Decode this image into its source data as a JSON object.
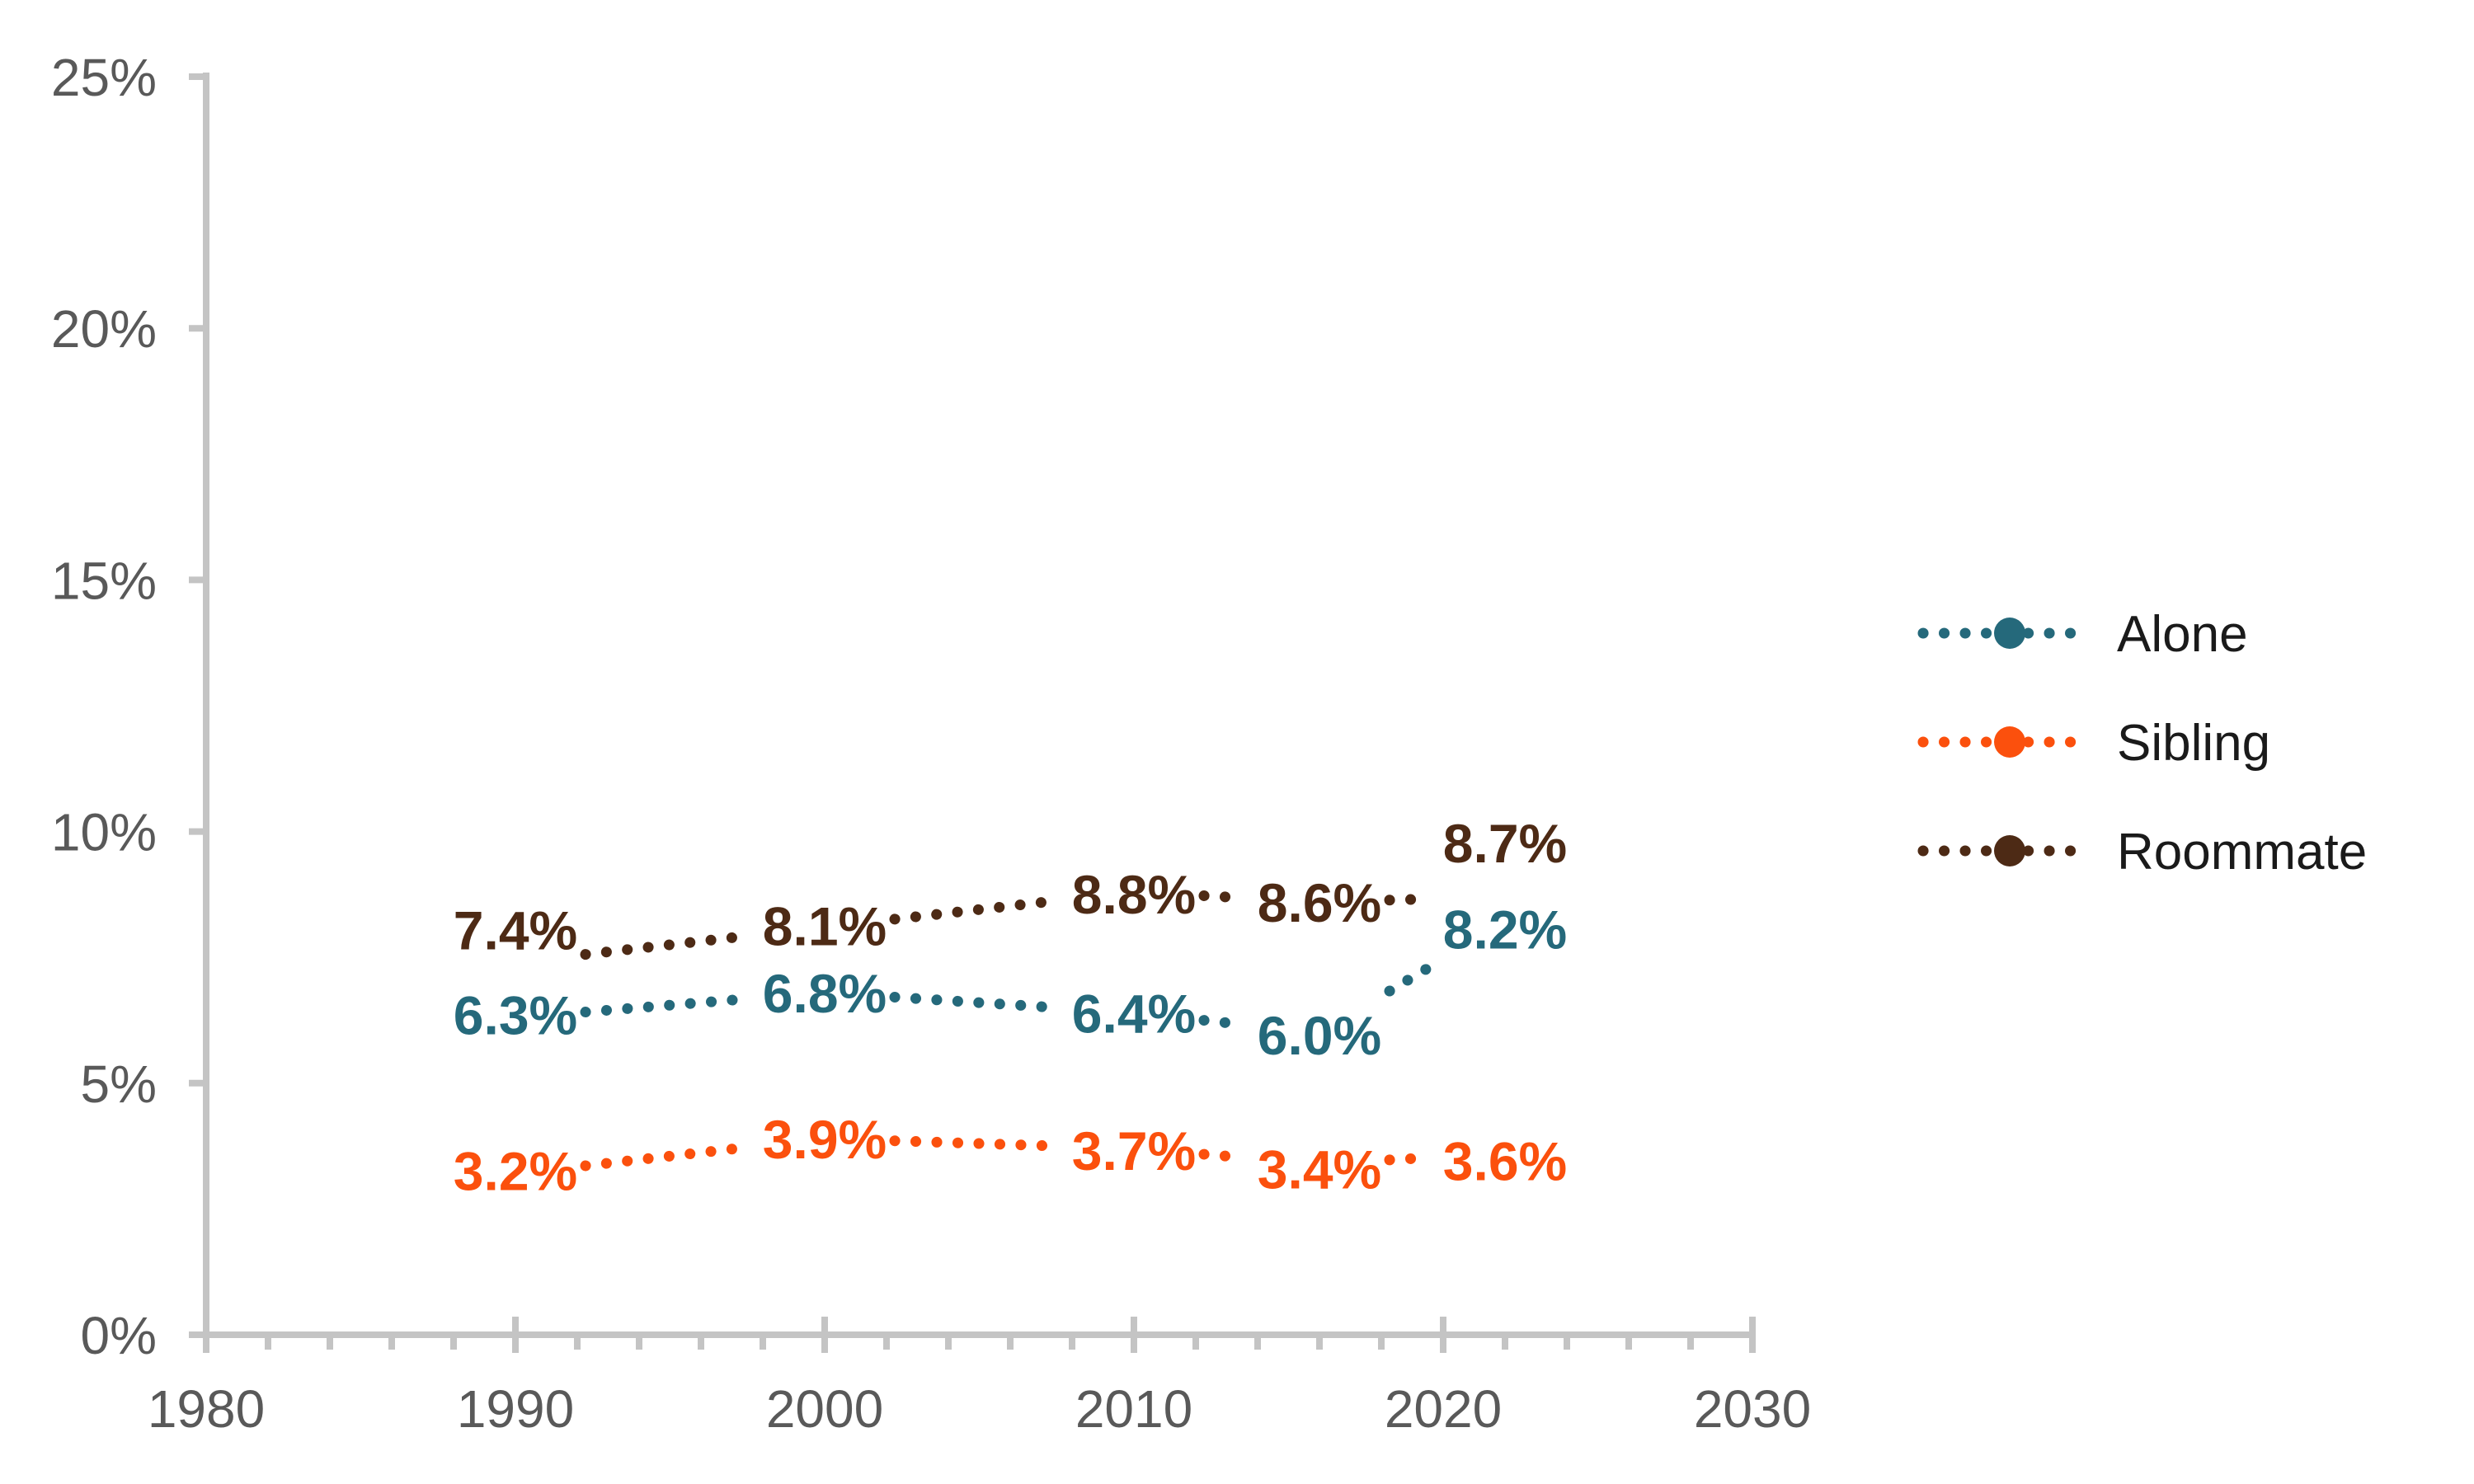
{
  "page": {
    "background": "#ffffff"
  },
  "chart_data": {
    "type": "line",
    "line_style": "dotted",
    "x": [
      1990,
      2000,
      2010,
      2016,
      2022
    ],
    "series": [
      {
        "name": "Alone",
        "color": "#25697b",
        "values": [
          6.3,
          6.8,
          6.4,
          6.0,
          8.2
        ],
        "point_labels": [
          "6.3%",
          "6.8%",
          "6.4%",
          "6.0%",
          "8.2%"
        ],
        "label_dy": [
          -4,
          0,
          0,
          2,
          8
        ]
      },
      {
        "name": "Sibling",
        "color": "#fb500d",
        "values": [
          3.2,
          3.9,
          3.7,
          3.4,
          3.6
        ],
        "point_labels": [
          "3.2%",
          "3.9%",
          "3.7%",
          "3.4%",
          "3.6%"
        ],
        "label_dy": [
          -4,
          0,
          2,
          6,
          8
        ]
      },
      {
        "name": "Roommate",
        "color": "#4d2a15",
        "values": [
          7.4,
          8.1,
          8.8,
          8.6,
          8.7
        ],
        "point_labels": [
          "7.4%",
          "8.1%",
          "8.8%",
          "8.6%",
          "8.7%"
        ],
        "label_dy": [
          -40,
          -2,
          2,
          0,
          -66
        ]
      }
    ],
    "x_axis": {
      "range": [
        1980,
        2030
      ],
      "major_ticks": [
        1980,
        1990,
        2000,
        2010,
        2020,
        2030
      ],
      "major_tick_labels": [
        "1980",
        "1990",
        "2000",
        "2010",
        "2020",
        "2030"
      ],
      "minor_tick_step_years": 2
    },
    "y_axis": {
      "range": [
        0,
        25
      ],
      "tick_values": [
        0,
        5,
        10,
        15,
        20,
        25
      ],
      "tick_labels": [
        "0%",
        "5%",
        "10%",
        "15%",
        "20%",
        "25%"
      ]
    },
    "legend": {
      "position": "right",
      "entries": [
        "Alone",
        "Sibling",
        "Roommate"
      ]
    },
    "colors": {
      "axis_line": "#c4c4c4",
      "tick_label": "#595959",
      "legend_text": "#1a1a1a"
    },
    "grid": "off",
    "title": ""
  }
}
